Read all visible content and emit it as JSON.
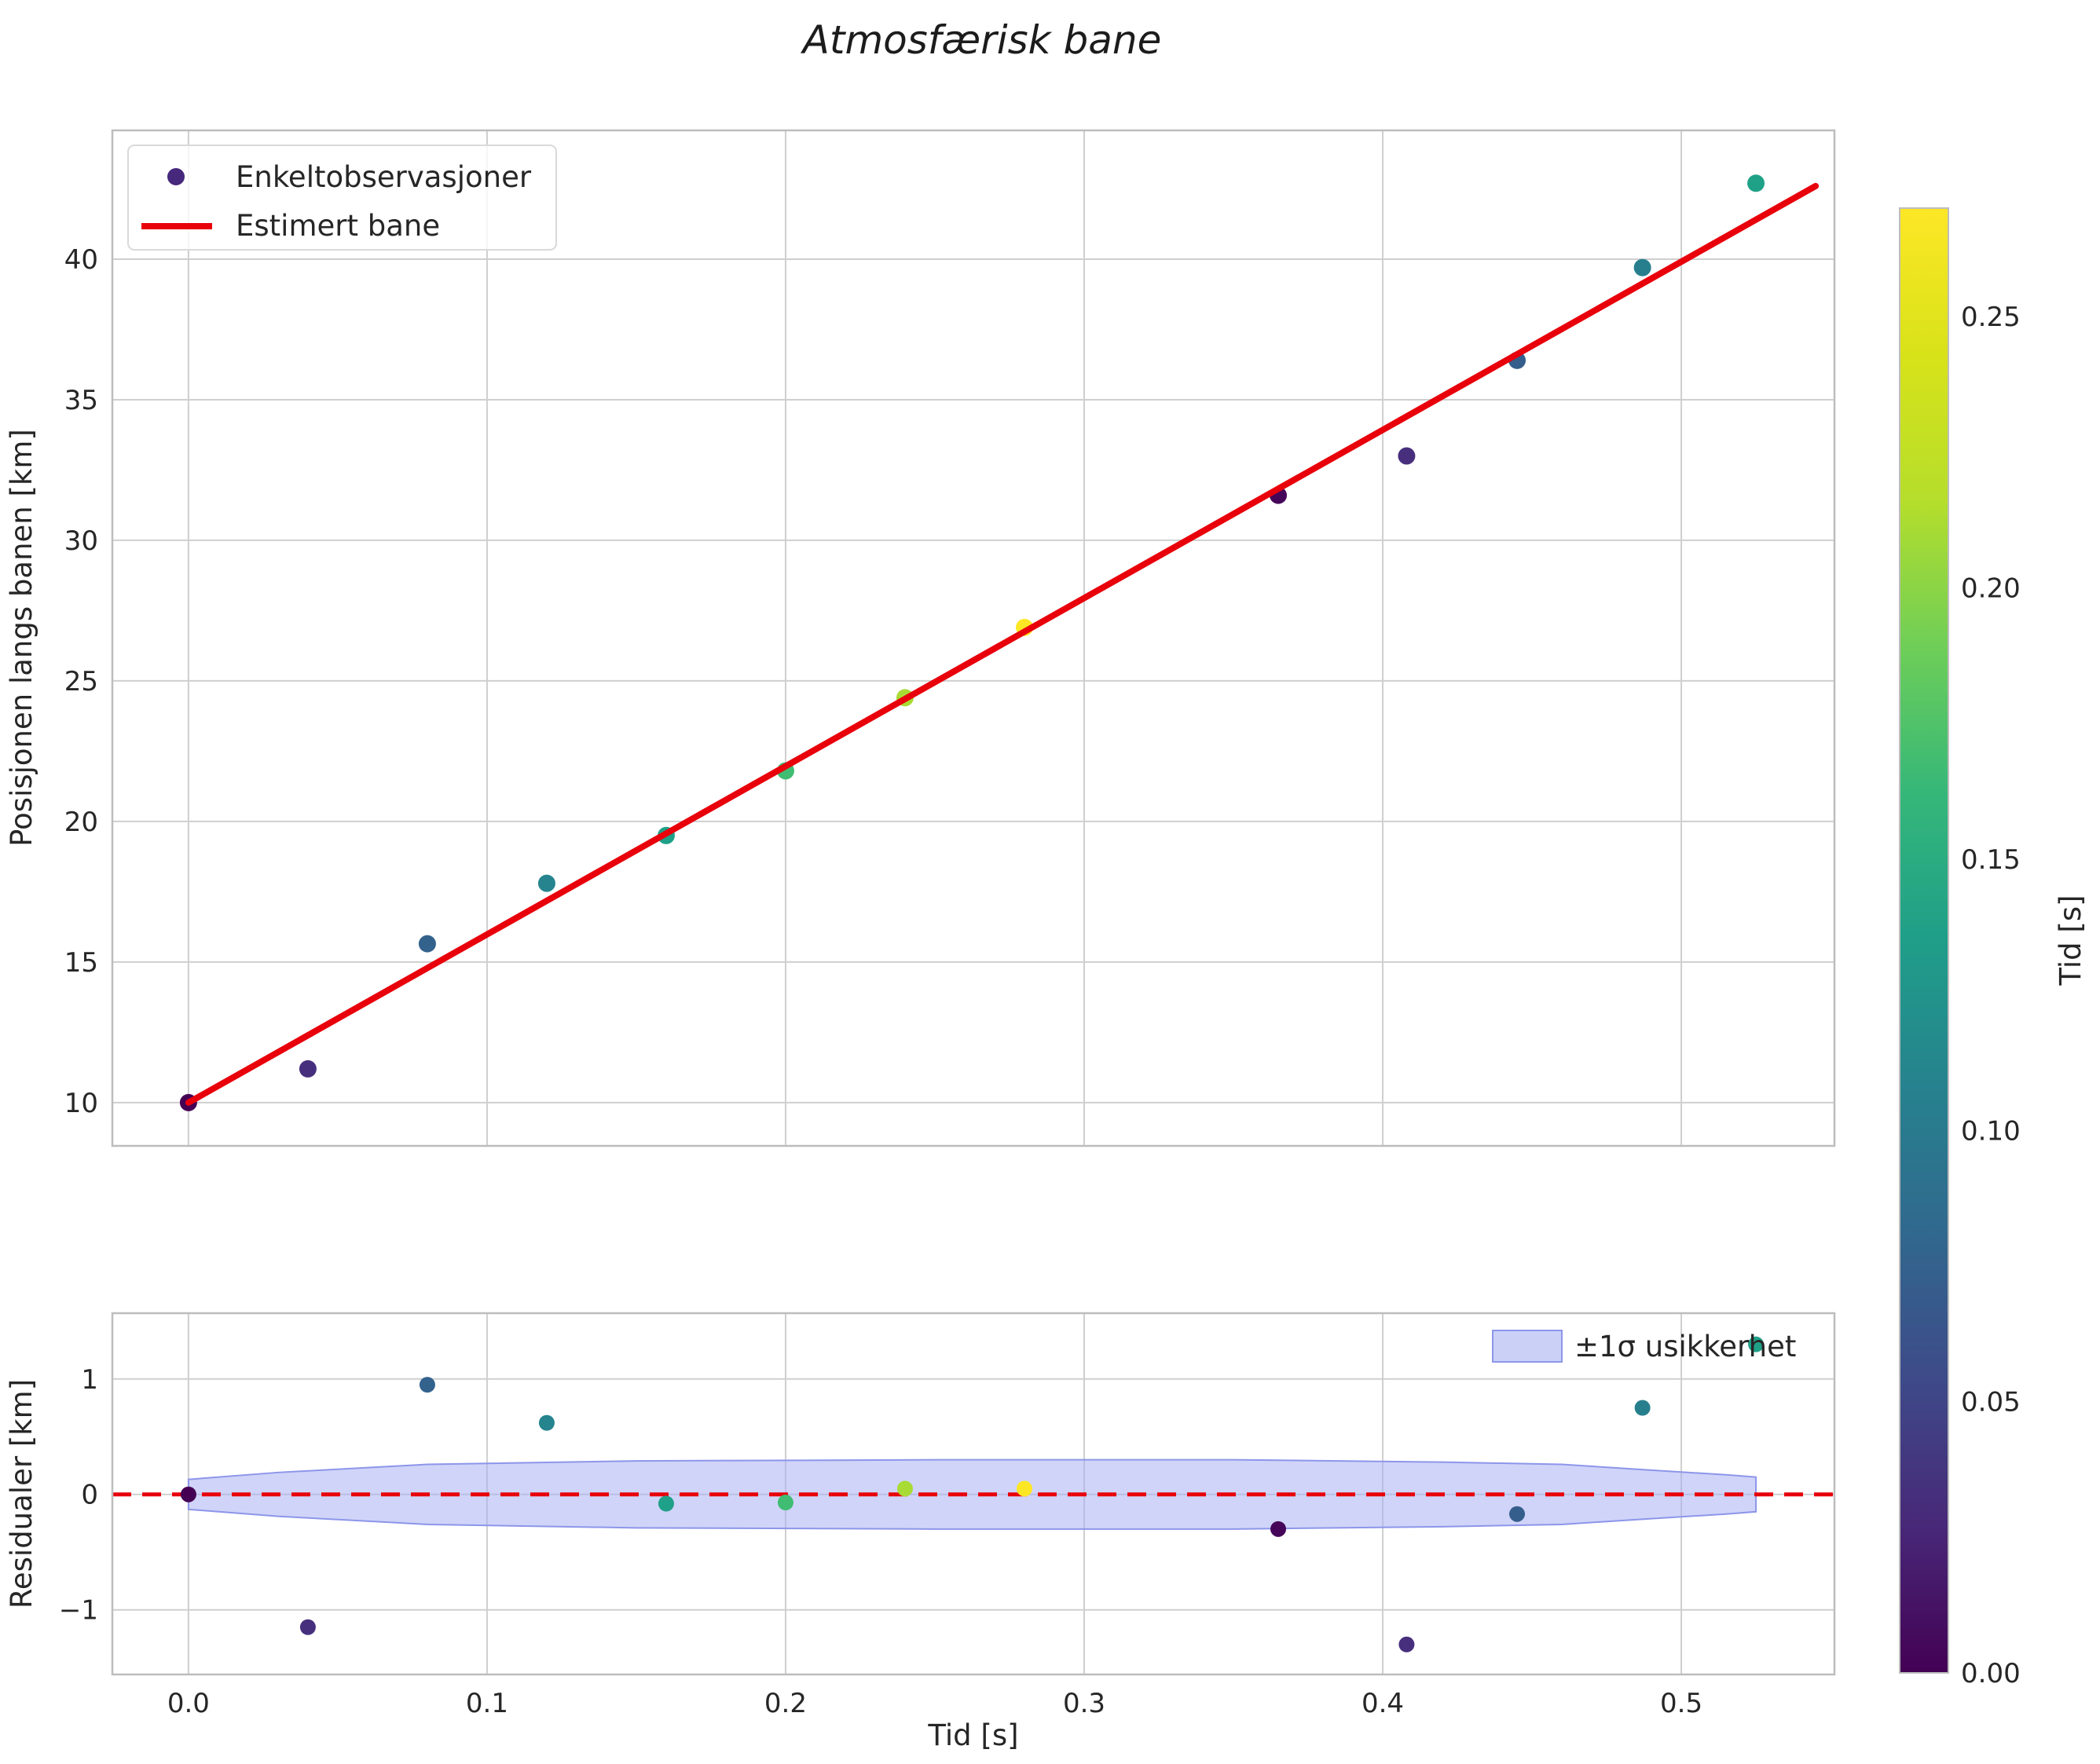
{
  "chart_data": [
    {
      "id": "trajectory",
      "type": "scatter",
      "title": "Atmosfærisk bane",
      "ylabel": "Posisjonen langs banen [km]",
      "xlim": [
        -0.0255,
        0.5513
      ],
      "ylim": [
        8.46,
        44.58
      ],
      "grid": true,
      "xtick_values": [
        0.0,
        0.1,
        0.2,
        0.3,
        0.4,
        0.5
      ],
      "ytick_values": [
        10,
        15,
        20,
        25,
        30,
        35,
        40
      ],
      "ytick_labels": [
        "10",
        "15",
        "20",
        "25",
        "30",
        "35",
        "40"
      ],
      "legend": {
        "scatter_label": "Enkeltobservasjoner",
        "line_label": "Estimert bane",
        "marker_color": "#46287c"
      },
      "points": [
        {
          "x": 0.0,
          "y": 10.0,
          "color": "#440154"
        },
        {
          "x": 0.04,
          "y": 11.2,
          "color": "#46307e"
        },
        {
          "x": 0.08,
          "y": 15.65,
          "color": "#33628d"
        },
        {
          "x": 0.12,
          "y": 17.8,
          "color": "#25848e"
        },
        {
          "x": 0.16,
          "y": 19.5,
          "color": "#1fa088"
        },
        {
          "x": 0.2,
          "y": 21.8,
          "color": "#40bd72"
        },
        {
          "x": 0.24,
          "y": 24.4,
          "color": "#a8db34"
        },
        {
          "x": 0.28,
          "y": 26.9,
          "color": "#fde725"
        },
        {
          "x": 0.365,
          "y": 31.6,
          "color": "#450559"
        },
        {
          "x": 0.408,
          "y": 33.0,
          "color": "#472f7d"
        },
        {
          "x": 0.445,
          "y": 36.4,
          "color": "#355e8d"
        },
        {
          "x": 0.487,
          "y": 39.7,
          "color": "#277f8e"
        },
        {
          "x": 0.525,
          "y": 42.7,
          "color": "#1fa187"
        }
      ],
      "fit_line": {
        "x0": 0.0,
        "y0": 10.0,
        "x1": 0.545,
        "y1": 42.6,
        "color": "#e8000b"
      }
    },
    {
      "id": "residuals",
      "type": "scatter",
      "xlabel": "Tid [s]",
      "ylabel": "Residualer [km]",
      "xlim": [
        -0.0255,
        0.5513
      ],
      "ylim": [
        -1.56,
        1.57
      ],
      "grid": true,
      "xtick_values": [
        0.0,
        0.1,
        0.2,
        0.3,
        0.4,
        0.5
      ],
      "xtick_labels": [
        "0.0",
        "0.1",
        "0.2",
        "0.3",
        "0.4",
        "0.5"
      ],
      "ytick_values": [
        -1,
        0,
        1
      ],
      "ytick_labels": [
        "−1",
        "0",
        "1"
      ],
      "zero_line_color": "#e8000b",
      "band": {
        "label": "±1σ usikkerhet",
        "fill": "#a9b1f2",
        "edge": "#8d96ea",
        "x": [
          0.0,
          0.03,
          0.08,
          0.15,
          0.25,
          0.35,
          0.42,
          0.46,
          0.49,
          0.515,
          0.525
        ],
        "upper": [
          0.13,
          0.19,
          0.26,
          0.29,
          0.3,
          0.3,
          0.28,
          0.26,
          0.21,
          0.17,
          0.15
        ],
        "lower": [
          -0.13,
          -0.19,
          -0.26,
          -0.29,
          -0.3,
          -0.3,
          -0.28,
          -0.26,
          -0.21,
          -0.17,
          -0.15
        ]
      },
      "points": [
        {
          "x": 0.0,
          "y": 0.0,
          "color": "#440154"
        },
        {
          "x": 0.04,
          "y": -1.15,
          "color": "#46307e"
        },
        {
          "x": 0.08,
          "y": 0.95,
          "color": "#33628d"
        },
        {
          "x": 0.12,
          "y": 0.62,
          "color": "#25848e"
        },
        {
          "x": 0.16,
          "y": -0.08,
          "color": "#1fa088"
        },
        {
          "x": 0.2,
          "y": -0.07,
          "color": "#40bd72"
        },
        {
          "x": 0.24,
          "y": 0.05,
          "color": "#a8db34"
        },
        {
          "x": 0.28,
          "y": 0.05,
          "color": "#fde725"
        },
        {
          "x": 0.365,
          "y": -0.3,
          "color": "#450559"
        },
        {
          "x": 0.408,
          "y": -1.3,
          "color": "#472f7d"
        },
        {
          "x": 0.445,
          "y": -0.17,
          "color": "#355e8d"
        },
        {
          "x": 0.487,
          "y": 0.75,
          "color": "#277f8e"
        },
        {
          "x": 0.525,
          "y": 1.3,
          "color": "#1fa187"
        }
      ]
    }
  ],
  "colorbar": {
    "label": "Tid [s]",
    "min": 0.0,
    "max": 0.27,
    "tick_values": [
      0.0,
      0.05,
      0.1,
      0.15,
      0.2,
      0.25
    ],
    "tick_labels": [
      "0.00",
      "0.05",
      "0.10",
      "0.15",
      "0.20",
      "0.25"
    ],
    "gradient": [
      "#440154",
      "#482878",
      "#3e4a89",
      "#31688e",
      "#26828e",
      "#1f9e89",
      "#35b779",
      "#6ece58",
      "#b5de2b",
      "#d8e219",
      "#fde725"
    ]
  }
}
